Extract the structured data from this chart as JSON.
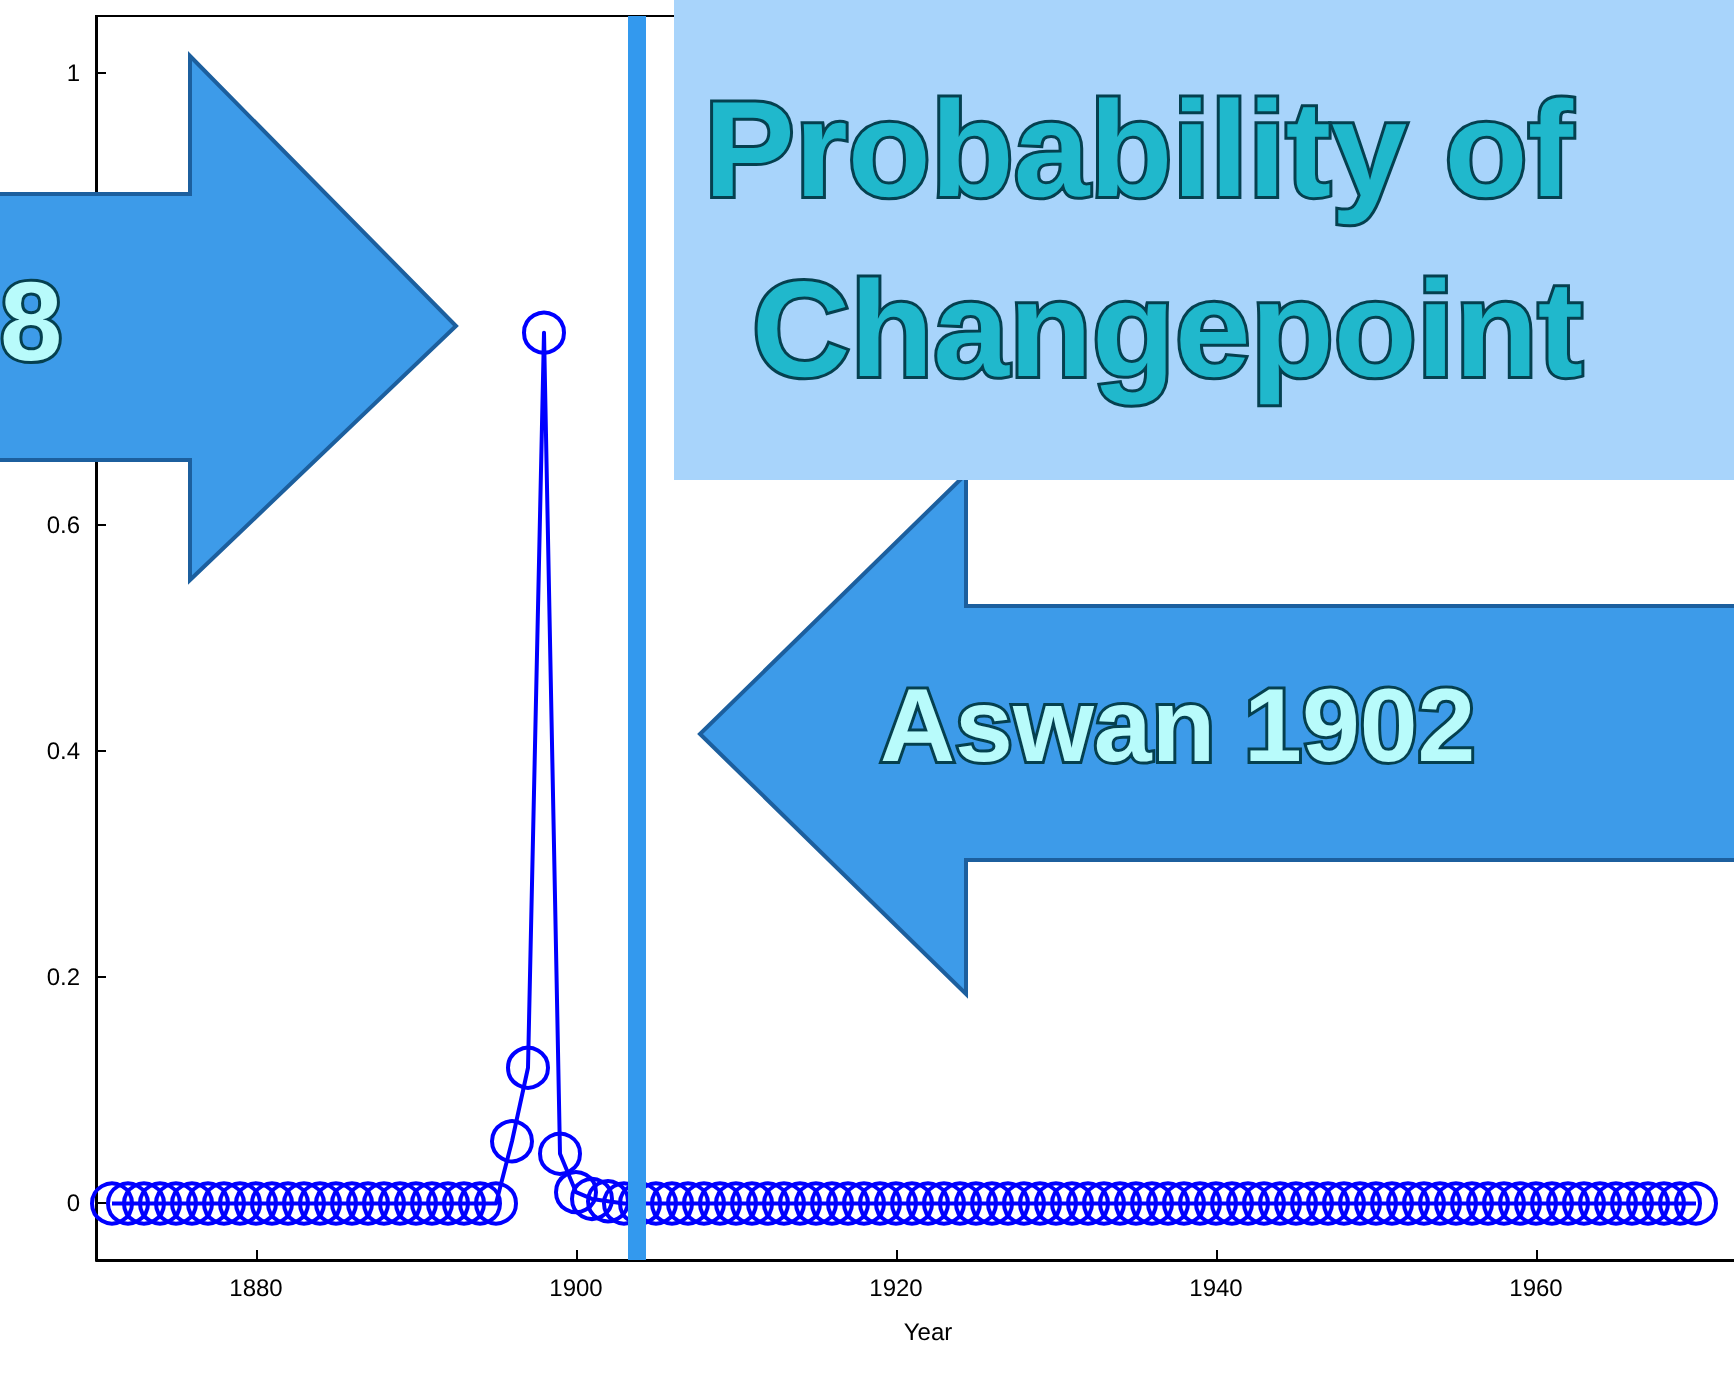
{
  "chart_data": {
    "type": "line",
    "title": "Probability of Changepoint",
    "xlabel": "Year",
    "annotations": [
      "8",
      "Aswan 1902"
    ],
    "x": [
      1871,
      1872,
      1873,
      1874,
      1875,
      1876,
      1877,
      1878,
      1879,
      1880,
      1881,
      1882,
      1883,
      1884,
      1885,
      1886,
      1887,
      1888,
      1889,
      1890,
      1891,
      1892,
      1893,
      1894,
      1895,
      1896,
      1897,
      1898,
      1899,
      1900,
      1901,
      1902,
      1903,
      1904,
      1905,
      1906,
      1907,
      1908,
      1909,
      1910,
      1911,
      1912,
      1913,
      1914,
      1915,
      1916,
      1917,
      1918,
      1919,
      1920,
      1921,
      1922,
      1923,
      1924,
      1925,
      1926,
      1927,
      1928,
      1929,
      1930,
      1931,
      1932,
      1933,
      1934,
      1935,
      1936,
      1937,
      1938,
      1939,
      1940,
      1941,
      1942,
      1943,
      1944,
      1945,
      1946,
      1947,
      1948,
      1949,
      1950,
      1951,
      1952,
      1953,
      1954,
      1955,
      1956,
      1957,
      1958,
      1959,
      1960,
      1961,
      1962,
      1963,
      1964,
      1965,
      1966,
      1967,
      1968,
      1969,
      1970
    ],
    "series": [
      {
        "color": "#0000ff",
        "values": [
          0,
          0,
          0,
          0,
          0,
          0,
          0,
          0,
          0,
          0,
          0,
          0,
          0,
          0,
          0,
          0,
          0,
          0,
          0,
          0,
          0,
          0,
          0,
          0,
          0,
          0.055,
          0.12,
          0.77,
          0.044,
          0.01,
          0.004,
          0.002,
          0,
          0,
          0,
          0,
          0,
          0,
          0,
          0,
          0,
          0,
          0,
          0,
          0,
          0,
          0,
          0,
          0,
          0,
          0,
          0,
          0,
          0,
          0,
          0,
          0,
          0,
          0,
          0,
          0,
          0,
          0,
          0,
          0,
          0,
          0,
          0,
          0,
          0,
          0,
          0,
          0,
          0,
          0,
          0,
          0,
          0,
          0,
          0,
          0,
          0,
          0,
          0,
          0,
          0,
          0,
          0,
          0,
          0,
          0,
          0,
          0,
          0,
          0,
          0,
          0,
          0,
          0,
          0
        ]
      }
    ],
    "ref_lines": [
      {
        "axis": "x",
        "value": 1903.75,
        "color": "#3399ee"
      }
    ],
    "xlim": [
      1870,
      1974
    ],
    "xticks": [
      1880,
      1900,
      1920,
      1940,
      1960
    ],
    "ylim": [
      -0.05,
      1.05
    ],
    "yticks": [
      0,
      0.2,
      0.4,
      0.6,
      {
        "value": 0.8,
        "label": null
      },
      1
    ],
    "marker": "circle",
    "grid": false
  }
}
